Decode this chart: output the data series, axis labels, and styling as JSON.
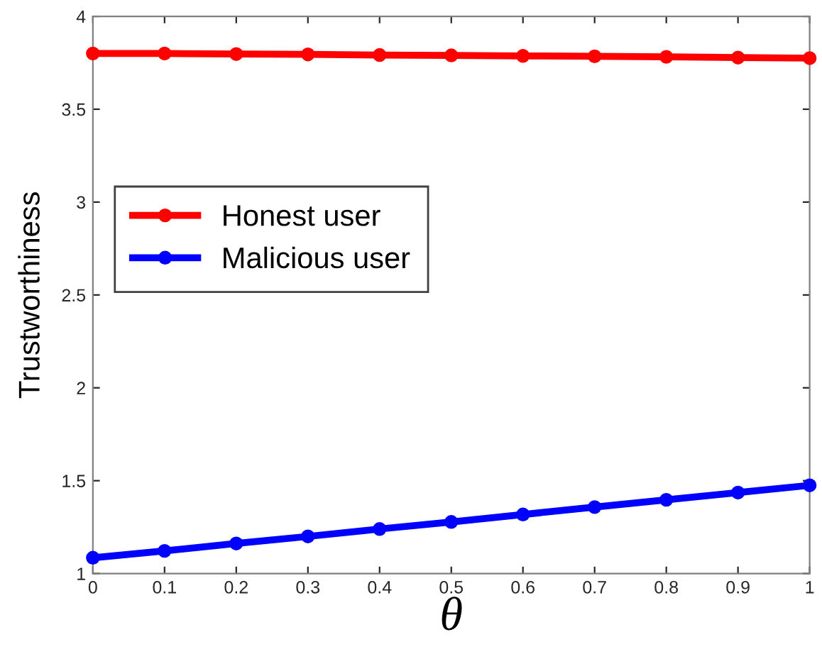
{
  "chart_data": {
    "type": "line",
    "xlabel": "θ",
    "ylabel": "Trustworthiness",
    "x": [
      0,
      0.1,
      0.2,
      0.3,
      0.4,
      0.5,
      0.6,
      0.7,
      0.8,
      0.9,
      1
    ],
    "series": [
      {
        "name": "Honest user",
        "color": "#ff0000",
        "values": [
          3.8,
          3.8,
          3.797,
          3.795,
          3.792,
          3.79,
          3.787,
          3.785,
          3.782,
          3.778,
          3.775
        ]
      },
      {
        "name": "Malicious user",
        "color": "#0000ff",
        "values": [
          1.085,
          1.122,
          1.162,
          1.2,
          1.24,
          1.278,
          1.318,
          1.358,
          1.397,
          1.436,
          1.475
        ]
      }
    ],
    "xlim": [
      0,
      1
    ],
    "ylim": [
      1,
      4
    ],
    "xticks": [
      0,
      0.1,
      0.2,
      0.3,
      0.4,
      0.5,
      0.6,
      0.7,
      0.8,
      0.9,
      1
    ],
    "yticks": [
      1,
      1.5,
      2,
      2.5,
      3,
      3.5,
      4
    ],
    "grid": false,
    "legend": "left",
    "marker": "circle",
    "line_style": "solid"
  }
}
